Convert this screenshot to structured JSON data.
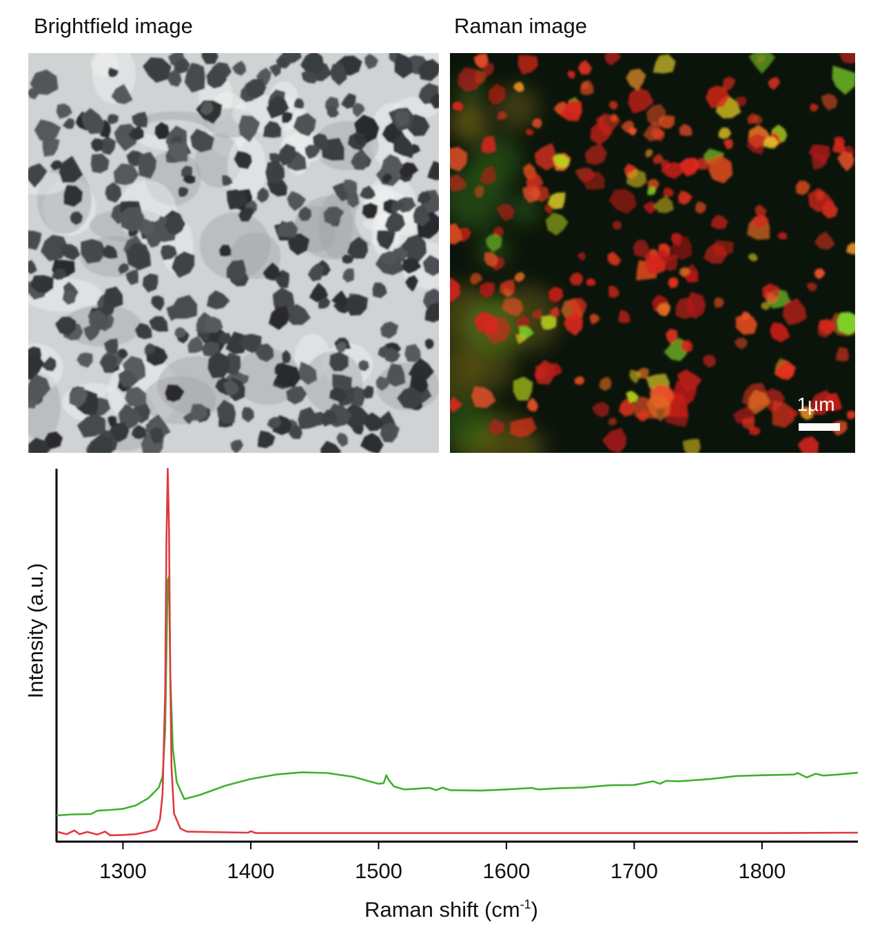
{
  "panels": {
    "brightfield_title": "Brightfield image",
    "raman_title": "Raman image",
    "scale_bar_label": "1µm"
  },
  "colors": {
    "series_red": "#e0393f",
    "series_green": "#3fb12c",
    "bf_background": "#cfd3d4",
    "bf_particle": "#3a3d40",
    "raman_background": "#0b140b"
  },
  "chart_data": {
    "type": "line",
    "title": "",
    "xlabel": "Raman shift (cm",
    "xlabel_sup": "-1",
    "xlabel_close": ")",
    "ylabel": "Intensity (a.u.)",
    "xlim": [
      1248,
      1875
    ],
    "ylim": [
      0,
      1.0
    ],
    "xticks": [
      1300,
      1400,
      1500,
      1600,
      1700,
      1800
    ],
    "grid": false,
    "legend": "none",
    "series": [
      {
        "color": "#3fb12c",
        "points": [
          [
            1248,
            0.07
          ],
          [
            1260,
            0.073
          ],
          [
            1275,
            0.074
          ],
          [
            1280,
            0.083
          ],
          [
            1290,
            0.085
          ],
          [
            1300,
            0.088
          ],
          [
            1310,
            0.097
          ],
          [
            1320,
            0.117
          ],
          [
            1328,
            0.145
          ],
          [
            1331,
            0.175
          ],
          [
            1333,
            0.3
          ],
          [
            1335,
            0.7
          ],
          [
            1336,
            0.71
          ],
          [
            1337,
            0.45
          ],
          [
            1339,
            0.25
          ],
          [
            1342,
            0.16
          ],
          [
            1348,
            0.114
          ],
          [
            1360,
            0.125
          ],
          [
            1380,
            0.15
          ],
          [
            1400,
            0.168
          ],
          [
            1420,
            0.18
          ],
          [
            1440,
            0.186
          ],
          [
            1460,
            0.184
          ],
          [
            1480,
            0.174
          ],
          [
            1500,
            0.155
          ],
          [
            1504,
            0.157
          ],
          [
            1506,
            0.178
          ],
          [
            1508,
            0.165
          ],
          [
            1512,
            0.148
          ],
          [
            1520,
            0.14
          ],
          [
            1540,
            0.144
          ],
          [
            1545,
            0.138
          ],
          [
            1550,
            0.145
          ],
          [
            1556,
            0.138
          ],
          [
            1580,
            0.137
          ],
          [
            1600,
            0.14
          ],
          [
            1620,
            0.144
          ],
          [
            1625,
            0.14
          ],
          [
            1640,
            0.143
          ],
          [
            1660,
            0.145
          ],
          [
            1680,
            0.151
          ],
          [
            1700,
            0.152
          ],
          [
            1715,
            0.162
          ],
          [
            1720,
            0.155
          ],
          [
            1725,
            0.163
          ],
          [
            1735,
            0.162
          ],
          [
            1760,
            0.168
          ],
          [
            1780,
            0.176
          ],
          [
            1800,
            0.178
          ],
          [
            1825,
            0.18
          ],
          [
            1828,
            0.184
          ],
          [
            1835,
            0.172
          ],
          [
            1842,
            0.182
          ],
          [
            1848,
            0.177
          ],
          [
            1860,
            0.18
          ],
          [
            1875,
            0.185
          ]
        ]
      },
      {
        "color": "#e0393f",
        "points": [
          [
            1248,
            0.027
          ],
          [
            1256,
            0.02
          ],
          [
            1262,
            0.03
          ],
          [
            1266,
            0.02
          ],
          [
            1272,
            0.026
          ],
          [
            1280,
            0.019
          ],
          [
            1286,
            0.027
          ],
          [
            1290,
            0.017
          ],
          [
            1300,
            0.018
          ],
          [
            1310,
            0.02
          ],
          [
            1320,
            0.027
          ],
          [
            1326,
            0.033
          ],
          [
            1329,
            0.06
          ],
          [
            1331,
            0.13
          ],
          [
            1333,
            0.4
          ],
          [
            1334,
            0.8
          ],
          [
            1335,
            1.0
          ],
          [
            1336,
            0.85
          ],
          [
            1337,
            0.45
          ],
          [
            1338,
            0.2
          ],
          [
            1340,
            0.075
          ],
          [
            1345,
            0.035
          ],
          [
            1350,
            0.027
          ],
          [
            1380,
            0.025
          ],
          [
            1398,
            0.024
          ],
          [
            1400,
            0.028
          ],
          [
            1404,
            0.023
          ],
          [
            1450,
            0.023
          ],
          [
            1500,
            0.023
          ],
          [
            1600,
            0.023
          ],
          [
            1700,
            0.023
          ],
          [
            1800,
            0.023
          ],
          [
            1875,
            0.024
          ]
        ]
      }
    ]
  }
}
